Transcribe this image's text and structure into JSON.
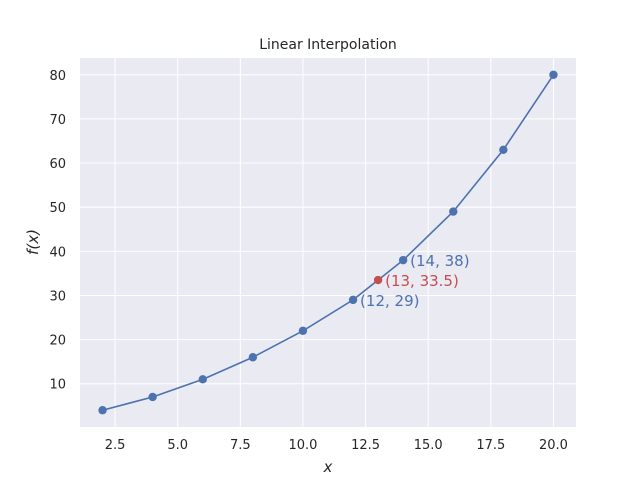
{
  "chart_data": {
    "type": "line",
    "title": "Linear Interpolation",
    "xlabel": "x",
    "ylabel": "f(x)",
    "xlim": [
      1.1,
      20.9
    ],
    "ylim": [
      0.2,
      83.8
    ],
    "x_ticks": [
      2.5,
      5.0,
      7.5,
      10.0,
      12.5,
      15.0,
      17.5,
      20.0
    ],
    "x_tick_labels": [
      "2.5",
      "5.0",
      "7.5",
      "10.0",
      "12.5",
      "15.0",
      "17.5",
      "20.0"
    ],
    "y_ticks": [
      10,
      20,
      30,
      40,
      50,
      60,
      70,
      80
    ],
    "y_tick_labels": [
      "10",
      "20",
      "30",
      "40",
      "50",
      "60",
      "70",
      "80"
    ],
    "grid": true,
    "series": [
      {
        "color": "#4c72b0",
        "x": [
          2,
          4,
          6,
          8,
          10,
          12,
          14,
          16,
          18,
          20
        ],
        "y": [
          4,
          7,
          11,
          16,
          22,
          29,
          38,
          49,
          63,
          80
        ]
      }
    ],
    "interpolated_point": {
      "x": 13,
      "y": 33.5,
      "color": "#c44e52"
    },
    "annotations": [
      {
        "text": "(12, 29)",
        "x": 12,
        "y": 29,
        "color": "#4c72b0"
      },
      {
        "text": "(14, 38)",
        "x": 14,
        "y": 38,
        "color": "#4c72b0"
      },
      {
        "text": "(13, 33.5)",
        "x": 13,
        "y": 33.5,
        "color": "#c44e52"
      }
    ]
  }
}
